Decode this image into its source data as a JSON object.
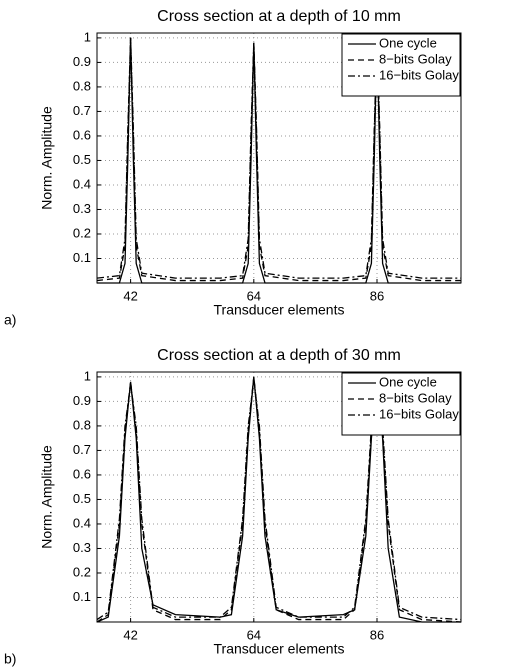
{
  "chart_data": [
    {
      "type": "line",
      "label": "a)",
      "title": "Cross section at a depth of 10 mm",
      "xlabel": "Transducer elements",
      "ylabel": "Norm. Amplitude",
      "x": [
        36,
        40,
        41,
        41.5,
        42,
        42.5,
        43,
        44,
        50,
        58,
        62,
        63,
        63.5,
        64,
        64.5,
        65,
        66,
        72,
        80,
        84,
        85,
        85.5,
        86,
        86.5,
        87,
        88,
        94,
        101
      ],
      "series": [
        {
          "name": "One cycle",
          "color": "#000000",
          "linestyle": "solid",
          "values": [
            0,
            0,
            0.08,
            0.5,
            1,
            0.5,
            0.08,
            0,
            0,
            0,
            0,
            0.08,
            0.5,
            0.98,
            0.5,
            0.08,
            0,
            0,
            0,
            0,
            0.08,
            0.5,
            1,
            0.5,
            0.08,
            0,
            0,
            0
          ]
        },
        {
          "name": "8−bits Golay",
          "color": "#000000",
          "linestyle": "dashed",
          "values": [
            0.01,
            0.02,
            0.15,
            0.6,
            1,
            0.6,
            0.15,
            0.03,
            0.01,
            0.01,
            0.02,
            0.15,
            0.6,
            0.98,
            0.6,
            0.15,
            0.03,
            0.01,
            0.01,
            0.02,
            0.15,
            0.6,
            1,
            0.6,
            0.15,
            0.03,
            0.01,
            0.01
          ]
        },
        {
          "name": "16−bits Golay",
          "color": "#000000",
          "linestyle": "dashdot",
          "values": [
            0.02,
            0.03,
            0.18,
            0.62,
            1,
            0.62,
            0.18,
            0.04,
            0.02,
            0.02,
            0.03,
            0.18,
            0.62,
            0.98,
            0.62,
            0.18,
            0.04,
            0.02,
            0.02,
            0.03,
            0.18,
            0.62,
            1,
            0.62,
            0.18,
            0.04,
            0.02,
            0.02
          ]
        }
      ],
      "xlim": [
        36,
        101
      ],
      "ylim": [
        0,
        1.02
      ],
      "xticks": [
        42,
        64,
        86
      ],
      "yticks": [
        0.1,
        0.2,
        0.3,
        0.4,
        0.5,
        0.6,
        0.7,
        0.8,
        0.9,
        1
      ],
      "grid": true,
      "legend": "upper right"
    },
    {
      "type": "line",
      "label": "b)",
      "title": "Cross section at a depth of 30 mm",
      "xlabel": "Transducer elements",
      "ylabel": "Norm. Amplitude",
      "x": [
        36,
        38,
        40,
        41,
        42,
        43,
        44,
        46,
        50,
        58,
        60,
        62,
        63,
        64,
        65,
        66,
        68,
        72,
        80,
        82,
        84,
        85,
        86,
        87,
        88,
        90,
        94,
        101
      ],
      "series": [
        {
          "name": "One cycle",
          "color": "#000000",
          "linestyle": "solid",
          "values": [
            0,
            0.02,
            0.35,
            0.75,
            0.98,
            0.75,
            0.3,
            0.07,
            0.03,
            0.02,
            0.03,
            0.35,
            0.75,
            1,
            0.75,
            0.35,
            0.05,
            0.02,
            0.03,
            0.05,
            0.35,
            0.75,
            0.98,
            0.75,
            0.3,
            0.02,
            0,
            0
          ]
        },
        {
          "name": "8−bits Golay",
          "color": "#000000",
          "linestyle": "dashed",
          "values": [
            0,
            0.03,
            0.4,
            0.78,
            0.98,
            0.78,
            0.4,
            0.05,
            0.01,
            0.01,
            0.05,
            0.4,
            0.78,
            1,
            0.78,
            0.4,
            0.05,
            0.01,
            0.01,
            0.05,
            0.4,
            0.78,
            0.98,
            0.78,
            0.4,
            0.05,
            0.01,
            0
          ]
        },
        {
          "name": "16−bits Golay",
          "color": "#000000",
          "linestyle": "dashdot",
          "values": [
            0.01,
            0.04,
            0.42,
            0.8,
            0.97,
            0.8,
            0.42,
            0.06,
            0.02,
            0.02,
            0.06,
            0.42,
            0.8,
            0.99,
            0.8,
            0.42,
            0.06,
            0.02,
            0.02,
            0.06,
            0.42,
            0.8,
            0.97,
            0.8,
            0.42,
            0.06,
            0.02,
            0.01
          ]
        }
      ],
      "xlim": [
        36,
        101
      ],
      "ylim": [
        0,
        1.02
      ],
      "xticks": [
        42,
        64,
        86
      ],
      "yticks": [
        0.1,
        0.2,
        0.3,
        0.4,
        0.5,
        0.6,
        0.7,
        0.8,
        0.9,
        1
      ],
      "grid": true,
      "legend": "upper right"
    }
  ]
}
